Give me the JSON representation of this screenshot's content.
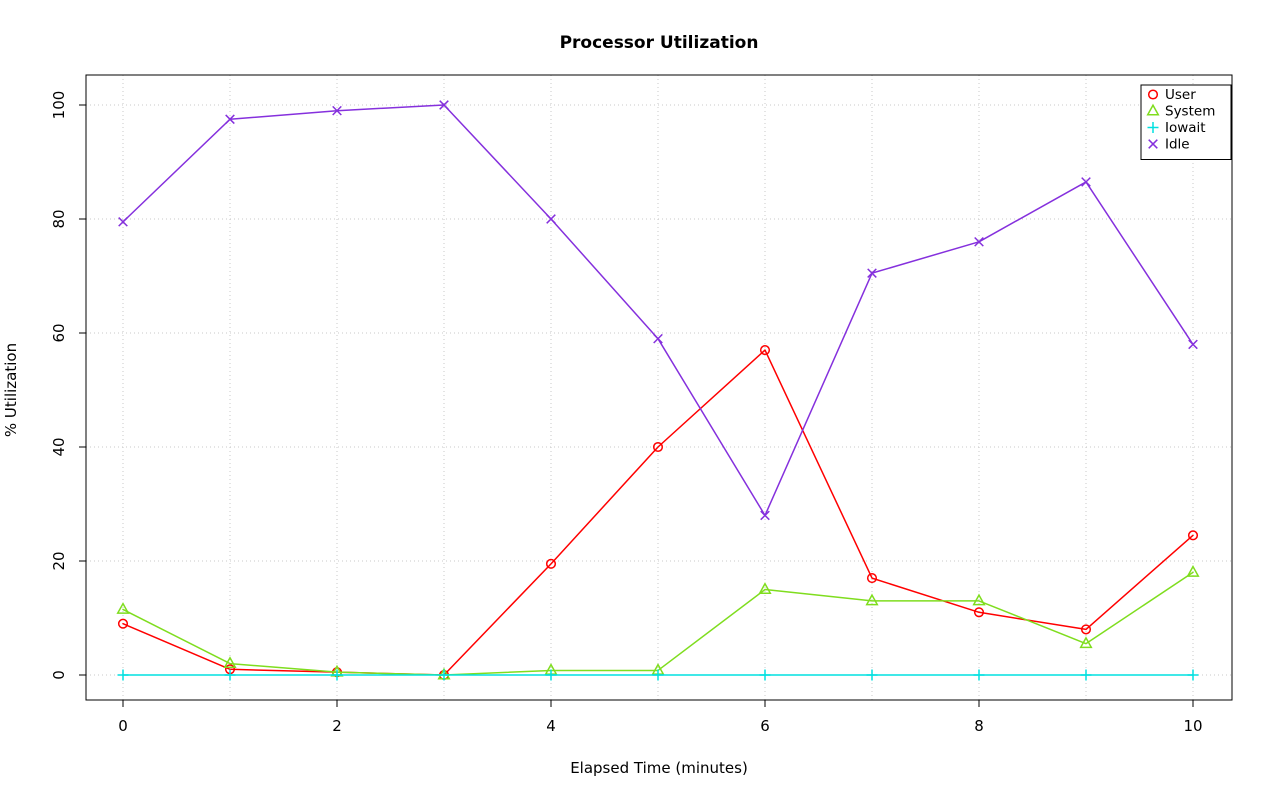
{
  "page": {
    "background": "#ffffff"
  },
  "chart_data": {
    "type": "line",
    "title": "Processor Utilization",
    "xlabel": "Elapsed Time (minutes)",
    "ylabel": "% Utilization",
    "xlim": [
      0,
      10
    ],
    "ylim": [
      0,
      100
    ],
    "x_ticks": [
      0,
      2,
      4,
      6,
      8,
      10
    ],
    "y_ticks": [
      0,
      20,
      40,
      60,
      80,
      100
    ],
    "grid": {
      "x_lines": [
        0,
        1,
        2,
        3,
        4,
        5,
        6,
        7,
        8,
        9,
        10
      ],
      "y_lines": [
        0,
        20,
        40,
        60,
        80,
        100
      ],
      "style": "dotted",
      "color": "#c8c8c8"
    },
    "legend": {
      "position": "top-right",
      "border": true,
      "entries": [
        "User",
        "System",
        "Iowait",
        "Idle"
      ]
    },
    "x": [
      0,
      1,
      2,
      3,
      4,
      5,
      6,
      7,
      8,
      9,
      10
    ],
    "series": [
      {
        "name": "User",
        "color": "#ff0000",
        "marker": "circle",
        "values": [
          9,
          1,
          0.5,
          0,
          19.5,
          40,
          57,
          17,
          11,
          8,
          24.5
        ]
      },
      {
        "name": "System",
        "color": "#7fdd1e",
        "marker": "triangle",
        "values": [
          11.5,
          2,
          0.5,
          0,
          0.8,
          0.8,
          15,
          13,
          13,
          5.5,
          18
        ]
      },
      {
        "name": "Iowait",
        "color": "#00e0e0",
        "marker": "plus",
        "values": [
          0,
          0,
          0,
          0,
          0,
          0,
          0,
          0,
          0,
          0,
          0
        ]
      },
      {
        "name": "Idle",
        "color": "#8530dd",
        "marker": "xcross",
        "values": [
          79.5,
          97.5,
          99,
          100,
          80,
          59,
          28,
          70.5,
          76,
          86.5,
          58
        ]
      }
    ]
  }
}
